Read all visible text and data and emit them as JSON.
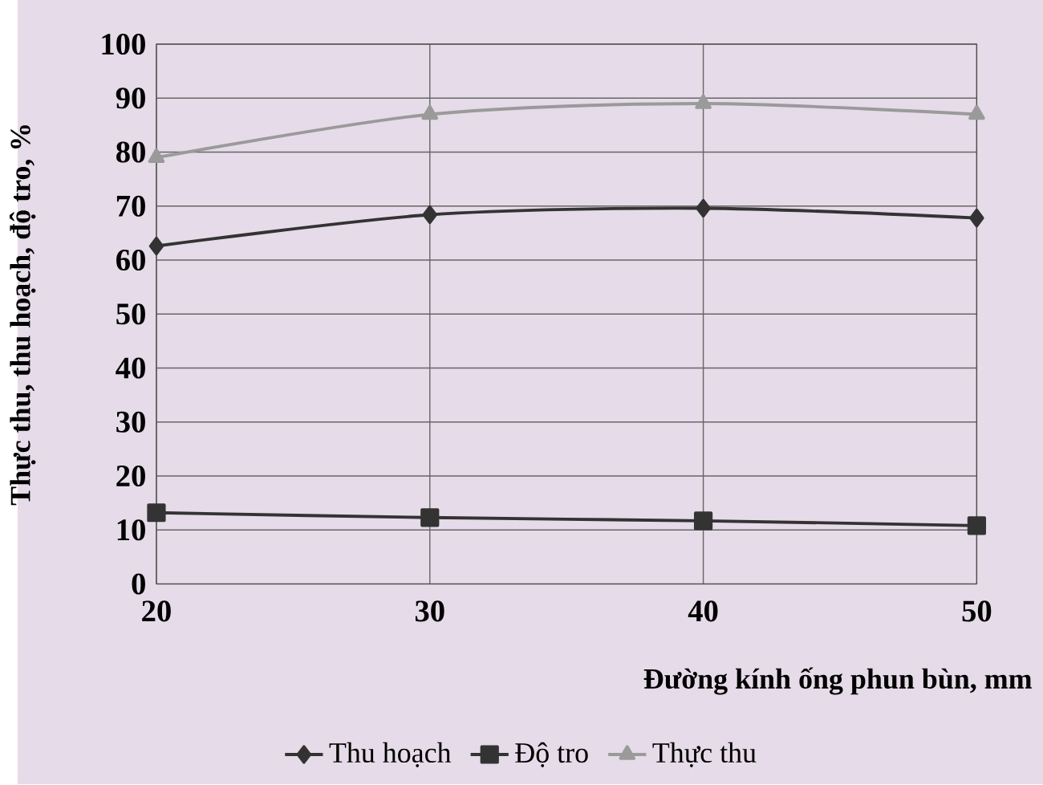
{
  "chart_data": {
    "type": "line",
    "xlabel": "Đường kính ống phun bùn, mm",
    "ylabel": "Thực thu, thu hoạch, độ tro, %",
    "x": [
      20,
      30,
      40,
      50
    ],
    "series": [
      {
        "name": "Thu hoạch",
        "color": "#333333",
        "marker": "diamond",
        "values": [
          62.6,
          68.4,
          69.6,
          67.8
        ]
      },
      {
        "name": "Độ tro",
        "color": "#333333",
        "marker": "square",
        "values": [
          13.2,
          12.3,
          11.7,
          10.8
        ]
      },
      {
        "name": "Thực thu",
        "color": "#9a9a9a",
        "marker": "triangle",
        "values": [
          79,
          87,
          89,
          87
        ]
      }
    ],
    "xlim": [
      20,
      50
    ],
    "xticks": [
      20,
      30,
      40,
      50
    ],
    "ylim": [
      0,
      100
    ],
    "yticks": [
      0,
      10,
      20,
      30,
      40,
      50,
      60,
      70,
      80,
      90,
      100
    ],
    "grid": true,
    "legend": "bottom",
    "line_style": "solid"
  }
}
